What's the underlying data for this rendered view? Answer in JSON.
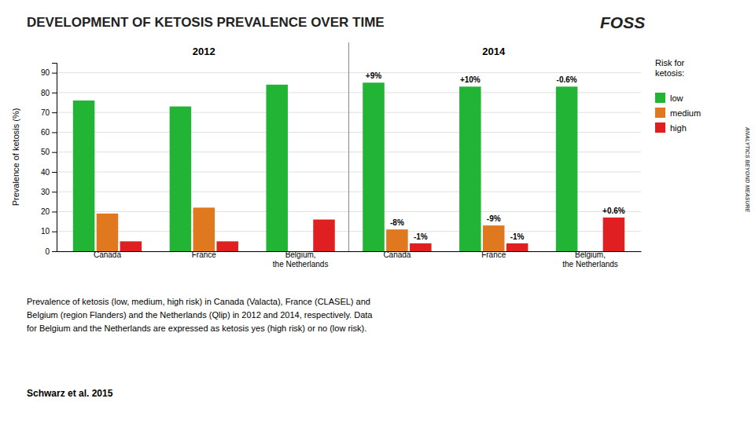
{
  "chart_data": {
    "type": "bar",
    "title": "DEVELOPMENT OF KETOSIS PREVALENCE OVER TIME",
    "groups": [
      "2012",
      "2014"
    ],
    "categories": [
      "Canada",
      "France",
      "Belgium,\nthe Netherlands",
      "Canada",
      "France",
      "Belgium,\nthe Netherlands"
    ],
    "series": [
      {
        "name": "low",
        "color": "#22b535",
        "values": [
          76,
          73,
          84,
          85,
          83,
          83
        ],
        "change_labels": [
          null,
          null,
          null,
          "+9%",
          "+10%",
          "-0.6%"
        ]
      },
      {
        "name": "medium",
        "color": "#e07820",
        "values": [
          19,
          22,
          0,
          11,
          13,
          0
        ],
        "change_labels": [
          null,
          null,
          null,
          "-8%",
          "-9%",
          null
        ]
      },
      {
        "name": "high",
        "color": "#e02020",
        "values": [
          5,
          5,
          16,
          4,
          4,
          17
        ],
        "change_labels": [
          null,
          null,
          null,
          "-1%",
          "-1%",
          "+0.6%"
        ]
      }
    ],
    "ylabel": "Prevalence of ketosis (%)",
    "ylim": [
      0,
      95
    ],
    "yticks": [
      0,
      10,
      20,
      30,
      40,
      50,
      60,
      70,
      80,
      90
    ],
    "grid": true,
    "legend": "right",
    "legend_title": "Risk for\nketosis:",
    "caption": [
      "Prevalence of ketosis (low, medium, high risk) in Canada (Valacta), France (CLASEL) and",
      "Belgium (region Flanders) and the Netherlands (Qlip) in 2012 and 2014, respectively. Data",
      "for Belgium and the Netherlands are expressed as ketosis yes (high risk) or no (low risk)."
    ],
    "source": "Schwarz et al. 2015",
    "annotations": [
      "FOSS",
      "ANALYTICS BEYOND MEASURE"
    ]
  }
}
